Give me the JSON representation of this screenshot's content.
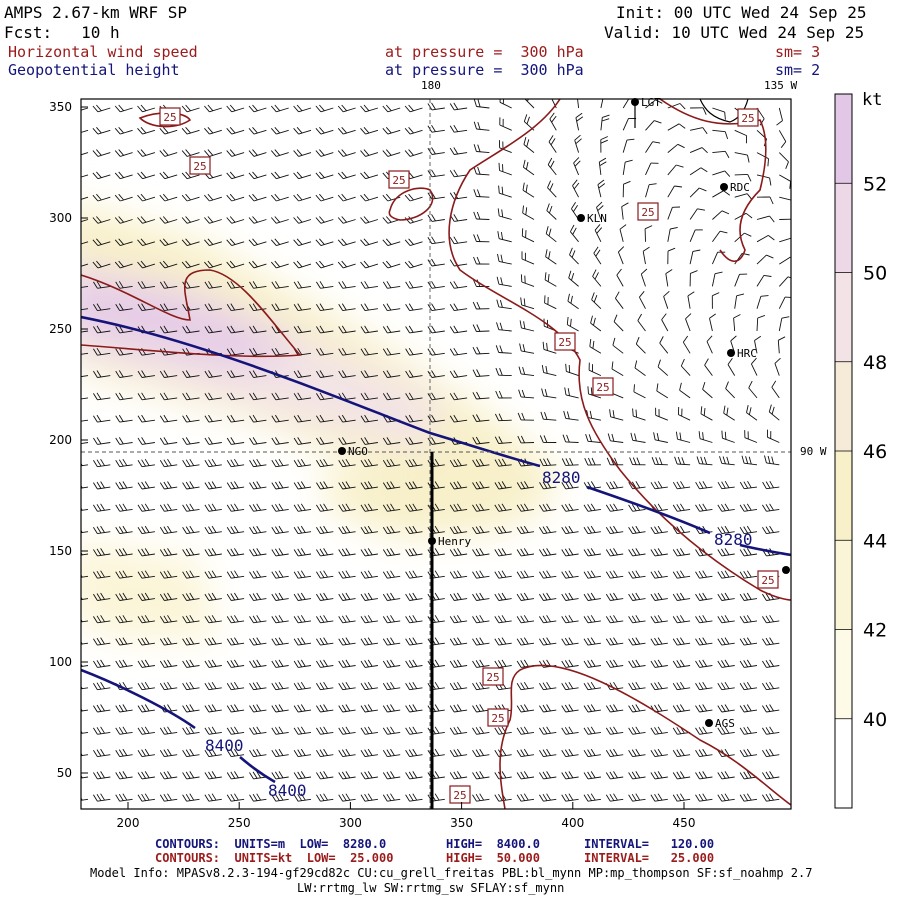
{
  "header": {
    "model": "AMPS 2.67-km WRF SP",
    "init": "Init: 00 UTC Wed 24 Sep 25",
    "fcst": "Fcst:   10 h",
    "valid": "Valid: 10 UTC Wed 24 Sep 25",
    "var1_name": "Horizontal wind speed",
    "var1_level": "at pressure =  300 hPa",
    "var1_sm": "sm= 3",
    "var2_name": "Geopotential height",
    "var2_level": "at pressure =  300 hPa",
    "var2_sm": "sm= 2"
  },
  "map": {
    "top_labels": [
      "180",
      "135 W"
    ],
    "right_label": "90 W",
    "x_ticks": [
      200,
      250,
      300,
      350,
      400,
      450
    ],
    "y_ticks": [
      50,
      100,
      150,
      200,
      250,
      300,
      350
    ],
    "stations": [
      {
        "name": "LGT",
        "x": 635,
        "y": 102
      },
      {
        "name": "RDC",
        "x": 724,
        "y": 187
      },
      {
        "name": "KLN",
        "x": 581,
        "y": 218
      },
      {
        "name": "HRC",
        "x": 731,
        "y": 353
      },
      {
        "name": "NGO",
        "x": 342,
        "y": 451
      },
      {
        "name": "Henry",
        "x": 432,
        "y": 541
      },
      {
        "name": "AGS",
        "x": 709,
        "y": 723
      },
      {
        "name": "",
        "x": 786,
        "y": 570
      }
    ],
    "kt_contour_labels": [
      "25",
      "25",
      "25",
      "25",
      "25",
      "25",
      "25",
      "25",
      "25",
      "25",
      "25"
    ],
    "height_contour_labels": [
      "8280",
      "8280",
      "8400",
      "8400"
    ]
  },
  "colorbar": {
    "unit": "kt",
    "labels": [
      "52",
      "50",
      "48",
      "46",
      "44",
      "42",
      "40"
    ],
    "colors": [
      "#e2c8e6",
      "#ecd8e6",
      "#f3e3e6",
      "#f6ebd8",
      "#f8f0c9",
      "#fbf5d8",
      "#fdfbe8",
      "#ffffff"
    ]
  },
  "footer": {
    "line1_a": "CONTOURS:  UNITS=m  LOW=  8280.0",
    "line1_b": "HIGH=  8400.0",
    "line1_c": "INTERVAL=   120.00",
    "line2_a": "CONTOURS:  UNITS=kt  LOW=  25.000",
    "line2_b": "HIGH=  50.000",
    "line2_c": "INTERVAL=   25.000",
    "model_info_1": "Model Info: MPASv8.2.3-194-gf29cd82c CU:cu_grell_freitas PBL:bl_mynn MP:mp_thompson SF:sf_noahmp 2.7",
    "model_info_2": "LW:rrtmg_lw SW:rrtmg_sw SFLAY:sf_mynn"
  }
}
